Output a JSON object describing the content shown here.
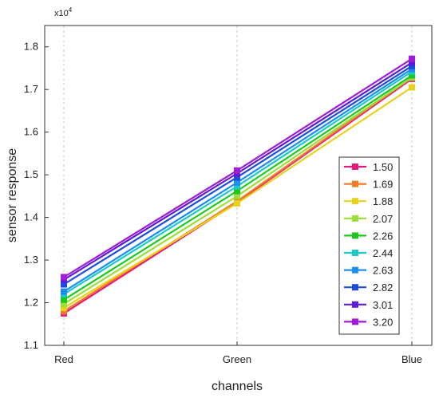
{
  "chart_data": {
    "type": "line",
    "title": "",
    "xlabel": "channels",
    "ylabel": "sensor response",
    "y_scale_label": "x10",
    "y_scale_exponent": "4",
    "categories": [
      "Red",
      "Green",
      "Blue"
    ],
    "ylim": [
      1.1,
      1.85
    ],
    "yticks": [
      "1.1",
      "1.2",
      "1.3",
      "1.4",
      "1.5",
      "1.6",
      "1.7",
      "1.8"
    ],
    "grid": "vertical-dashed",
    "legend_position": "bottom-right",
    "series": [
      {
        "name": "1.50",
        "color": "#e6197a",
        "values": [
          1.175,
          1.435,
          1.725
        ]
      },
      {
        "name": "1.69",
        "color": "#f07c2a",
        "values": [
          1.18,
          1.438,
          1.728
        ]
      },
      {
        "name": "1.88",
        "color": "#e8d21c",
        "values": [
          1.188,
          1.433,
          1.705
        ]
      },
      {
        "name": "2.07",
        "color": "#9ade3a",
        "values": [
          1.197,
          1.45,
          1.728
        ]
      },
      {
        "name": "2.26",
        "color": "#1cc81c",
        "values": [
          1.207,
          1.462,
          1.733
        ]
      },
      {
        "name": "2.44",
        "color": "#1cc8c8",
        "values": [
          1.22,
          1.473,
          1.742
        ]
      },
      {
        "name": "2.63",
        "color": "#1c8ef0",
        "values": [
          1.226,
          1.482,
          1.748
        ]
      },
      {
        "name": "2.82",
        "color": "#1c4be0",
        "values": [
          1.243,
          1.494,
          1.755
        ]
      },
      {
        "name": "3.01",
        "color": "#5a1cd6",
        "values": [
          1.254,
          1.503,
          1.763
        ]
      },
      {
        "name": "3.20",
        "color": "#a01cd6",
        "values": [
          1.26,
          1.51,
          1.772
        ]
      }
    ]
  }
}
